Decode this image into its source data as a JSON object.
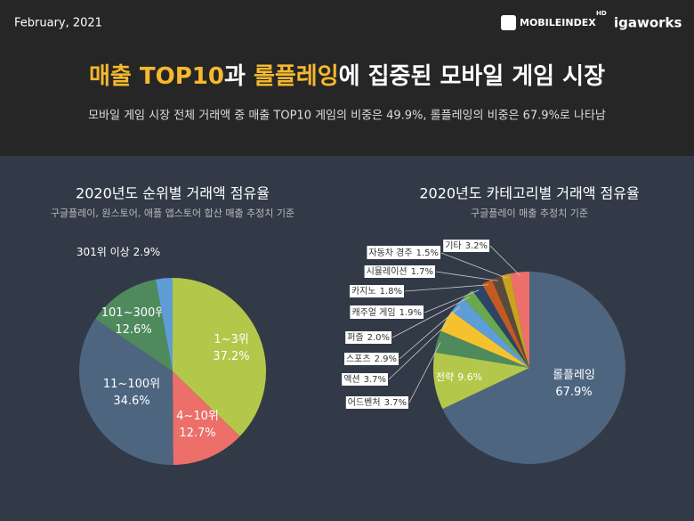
{
  "header": {
    "date": "February, 2021",
    "logo_main": "MOBILEINDEX",
    "logo_badge": "HD",
    "logo_brand": "igaworks",
    "title_parts": [
      "매출 TOP10",
      "과 ",
      "롤플레잉",
      "에 집중된 모바일 게임 시장"
    ],
    "title_highlight": [
      0,
      2
    ],
    "highlight_color": "#f5b82e",
    "subtitle": "모바일 게임 시장 전체 거래액 중 매출 TOP10 게임의 비중은 49.9%, 롤플레잉의 비중은 67.9%로 나타남"
  },
  "chart_data": [
    {
      "type": "pie",
      "title": "2020년도 순위별 거래액 점유율",
      "subtitle": "구글플레이, 원스토어, 애플 앱스토어 합산 매출 추정치 기준",
      "categories": [
        "1~3위",
        "4~10위",
        "11~100위",
        "101~300위",
        "301위 이상"
      ],
      "values": [
        37.2,
        12.7,
        34.6,
        12.6,
        2.9
      ],
      "value_labels": [
        "37.2%",
        "12.7%",
        "34.6%",
        "12.6%",
        "2.9%"
      ],
      "colors": [
        "#b3c84a",
        "#ec6f6a",
        "#4e6580",
        "#4f8a5d",
        "#5f9dd6"
      ]
    },
    {
      "type": "pie",
      "title": "2020년도 카테고리별 거래액 점유율",
      "subtitle": "구글플레이 매출 추정치 기준",
      "categories": [
        "롤플레잉",
        "전략",
        "어드벤처",
        "액션",
        "스포츠",
        "퍼즐",
        "캐주얼 게임",
        "카지노",
        "시뮬레이션",
        "자동차 경주",
        "기타"
      ],
      "values": [
        67.9,
        9.6,
        3.7,
        3.7,
        2.9,
        2.0,
        1.9,
        1.8,
        1.7,
        1.5,
        3.2
      ],
      "value_labels": [
        "67.9%",
        "9.6%",
        "3.7%",
        "3.7%",
        "2.9%",
        "2.0%",
        "1.9%",
        "1.8%",
        "1.7%",
        "1.5%",
        "3.2%"
      ],
      "colors": [
        "#4e6580",
        "#b3c84a",
        "#4f8a5d",
        "#f5c22e",
        "#5f9dd6",
        "#6aa84f",
        "#2c4466",
        "#c45a22",
        "#5a4a3c",
        "#c9a21f",
        "#ec6f6a"
      ]
    }
  ]
}
